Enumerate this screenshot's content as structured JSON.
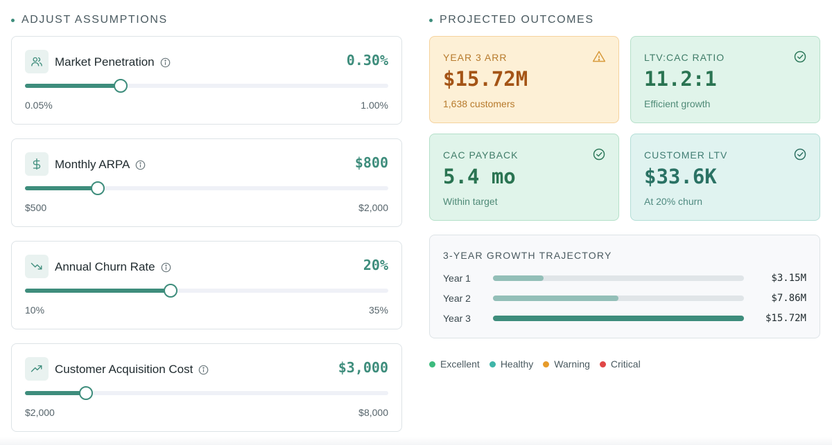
{
  "left_section": {
    "title": "ADJUST ASSUMPTIONS"
  },
  "right_section": {
    "title": "PROJECTED OUTCOMES"
  },
  "assumptions": [
    {
      "label": "Market Penetration",
      "value": "0.30%",
      "min": "0.05%",
      "max": "1.00%",
      "slider_fraction": 0.263,
      "icon": "users-icon"
    },
    {
      "label": "Monthly ARPA",
      "value": "$800",
      "min": "$500",
      "max": "$2,000",
      "slider_fraction": 0.2,
      "icon": "dollar-icon"
    },
    {
      "label": "Annual Churn Rate",
      "value": "20%",
      "min": "10%",
      "max": "35%",
      "slider_fraction": 0.4,
      "icon": "trending-down-icon"
    },
    {
      "label": "Customer Acquisition Cost",
      "value": "$3,000",
      "min": "$2,000",
      "max": "$8,000",
      "slider_fraction": 0.167,
      "icon": "trending-up-icon"
    }
  ],
  "outcomes": [
    {
      "label": "YEAR 3 ARR",
      "value": "$15.72M",
      "sub": "1,638 customers",
      "status": "warning",
      "icon": "warning-icon"
    },
    {
      "label": "LTV:CAC RATIO",
      "value": "11.2:1",
      "sub": "Efficient growth",
      "status": "excellent",
      "icon": "check-circle-icon"
    },
    {
      "label": "CAC PAYBACK",
      "value": "5.4 mo",
      "sub": "Within target",
      "status": "excellent",
      "icon": "check-circle-icon"
    },
    {
      "label": "CUSTOMER LTV",
      "value": "$33.6K",
      "sub": "At 20% churn",
      "status": "healthy",
      "icon": "check-circle-icon"
    }
  ],
  "trajectory": {
    "title": "3-YEAR GROWTH TRAJECTORY",
    "rows": [
      {
        "year": "Year 1",
        "amount": "$3.15M",
        "value": 3.15,
        "color": "#93bfb8"
      },
      {
        "year": "Year 2",
        "amount": "$7.86M",
        "value": 7.86,
        "color": "#93bfb8"
      },
      {
        "year": "Year 3",
        "amount": "$15.72M",
        "value": 15.72,
        "color": "#3e8d7c"
      }
    ]
  },
  "legend": [
    {
      "label": "Excellent",
      "color": "#3dbb7e"
    },
    {
      "label": "Healthy",
      "color": "#3fb5a8"
    },
    {
      "label": "Warning",
      "color": "#e69b2a"
    },
    {
      "label": "Critical",
      "color": "#e04646"
    }
  ],
  "colors": {
    "accent": "#3e8d7c"
  }
}
